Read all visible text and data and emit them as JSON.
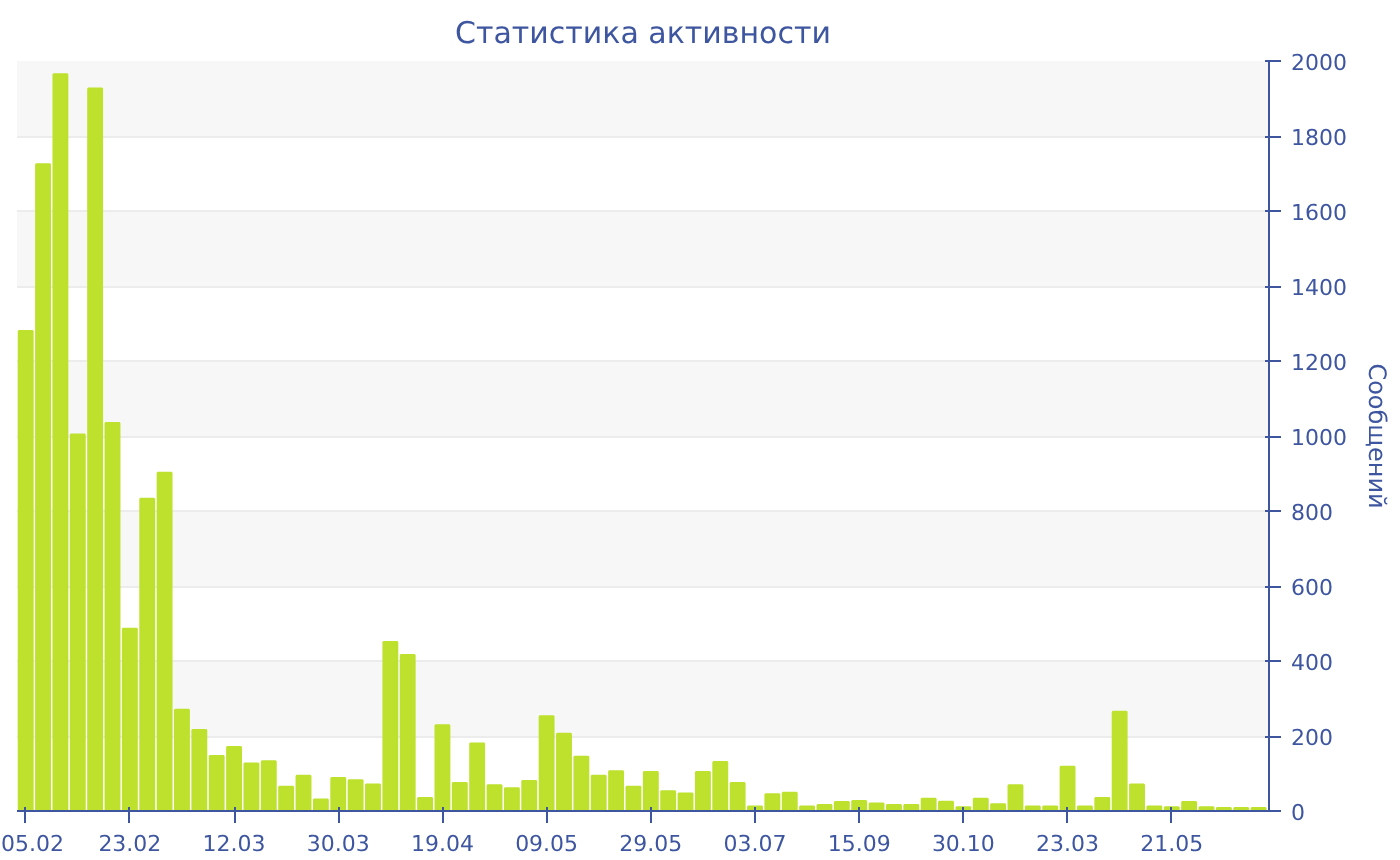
{
  "chart_data": {
    "type": "bar",
    "title": "Статистика активности",
    "ylabel": "Сообщений",
    "color": "#bde12d",
    "categories": [
      "05.02",
      null,
      null,
      null,
      null,
      null,
      "23.02",
      null,
      null,
      null,
      null,
      null,
      "12.03",
      null,
      null,
      null,
      null,
      null,
      "30.03",
      null,
      null,
      null,
      null,
      null,
      "19.04",
      null,
      null,
      null,
      null,
      null,
      "09.05",
      null,
      null,
      null,
      null,
      null,
      "29.05",
      null,
      null,
      null,
      null,
      null,
      "03.07",
      null,
      null,
      null,
      null,
      null,
      "15.09",
      null,
      null,
      null,
      null,
      null,
      "30.10",
      null,
      null,
      null,
      null,
      null,
      "23.03",
      null,
      null,
      null,
      null,
      null,
      "21.05",
      null,
      null,
      null,
      null,
      null
    ],
    "values": [
      1280,
      1725,
      1965,
      1004,
      1927,
      1035,
      486,
      833,
      902,
      270,
      216,
      147,
      171,
      127,
      133,
      65,
      94,
      31,
      88,
      82,
      71,
      451,
      416,
      35,
      229,
      75,
      180,
      69,
      61,
      80,
      253,
      206,
      145,
      94,
      106,
      65,
      104,
      53,
      47,
      104,
      131,
      75,
      12,
      45,
      49,
      12,
      16,
      24,
      27,
      20,
      16,
      16,
      33,
      25,
      10,
      33,
      18,
      69,
      12,
      12,
      118,
      12,
      35,
      265,
      71,
      12,
      10,
      24,
      10,
      8,
      8,
      8
    ],
    "ylim": [
      0,
      2000
    ],
    "yticks": [
      0,
      200,
      400,
      600,
      800,
      1000,
      1200,
      1400,
      1600,
      1800,
      2000
    ],
    "grid": "y"
  }
}
